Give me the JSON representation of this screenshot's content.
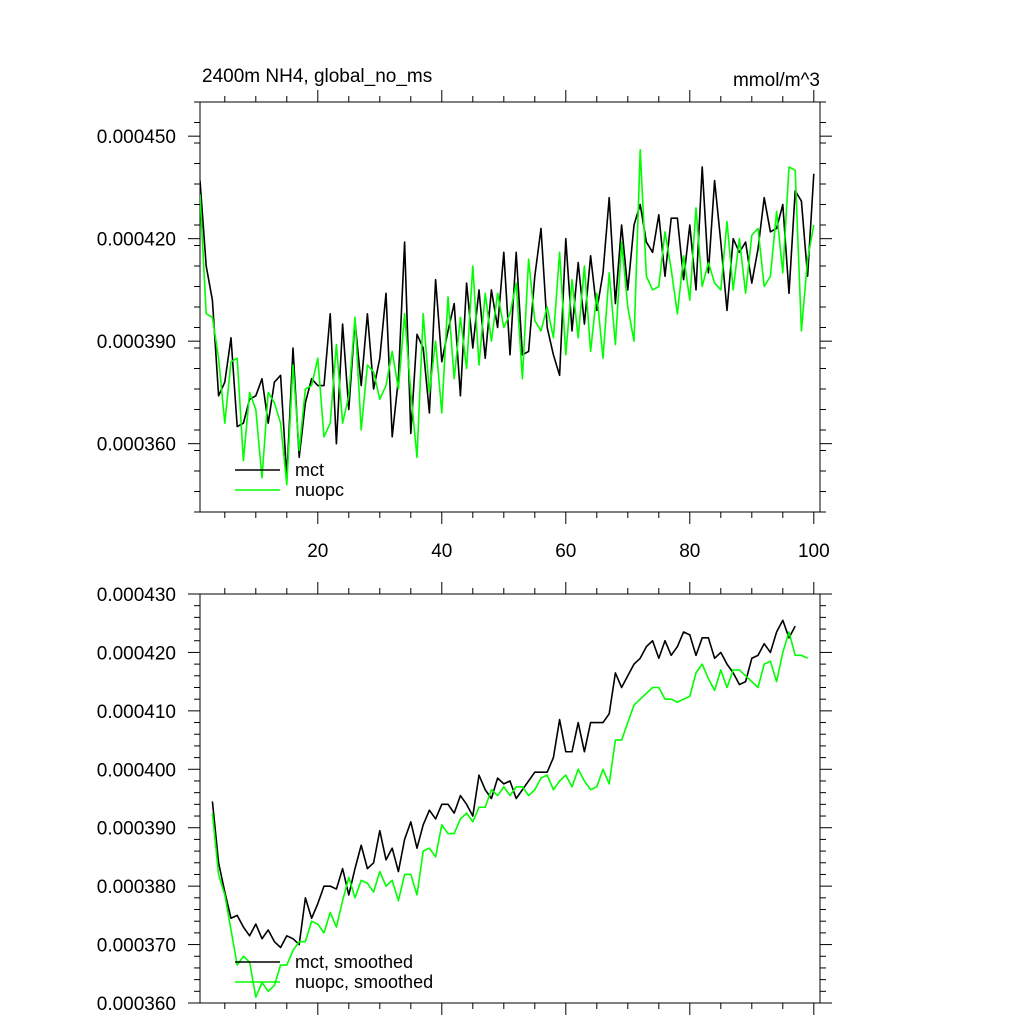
{
  "chart_data": [
    {
      "type": "line",
      "title": "2400m NH4, global_no_ms",
      "units": "mmol/m^3",
      "xlabel": "",
      "ylabel": "",
      "xlim": [
        1,
        101
      ],
      "ylim": [
        0.00034,
        0.00046
      ],
      "xticks": [
        20,
        40,
        60,
        80,
        100
      ],
      "xtick_labels": [
        "20",
        "40",
        "60",
        "80",
        "100"
      ],
      "yticks": [
        0.00036,
        0.00039,
        0.00042,
        0.00045
      ],
      "ytick_labels": [
        "0.000360",
        "0.000390",
        "0.000420",
        "0.000450"
      ],
      "legend": [
        "mct",
        "nuopc"
      ],
      "series": [
        {
          "name": "mct",
          "color": "#000000",
          "values": [
            0.000437,
            0.000412,
            0.000402,
            0.000374,
            0.000378,
            0.000391,
            0.000365,
            0.000366,
            0.000373,
            0.000374,
            0.000379,
            0.000366,
            0.000378,
            0.00038,
            0.00035,
            0.000388,
            0.000356,
            0.000372,
            0.000379,
            0.000377,
            0.000377,
            0.000398,
            0.00036,
            0.000395,
            0.00037,
            0.000396,
            0.000377,
            0.000398,
            0.000376,
            0.000385,
            0.000404,
            0.000362,
            0.000379,
            0.000419,
            0.000363,
            0.000392,
            0.000388,
            0.000369,
            0.000408,
            0.000384,
            0.000393,
            0.000401,
            0.000374,
            0.000407,
            0.000388,
            0.000405,
            0.000385,
            0.000405,
            0.000394,
            0.000416,
            0.000386,
            0.000416,
            0.000386,
            0.000387,
            0.000409,
            0.000423,
            0.000394,
            0.000386,
            0.00038,
            0.00042,
            0.000393,
            0.000413,
            0.000395,
            0.000415,
            0.000399,
            0.00041,
            0.000432,
            0.000401,
            0.000424,
            0.000405,
            0.000424,
            0.00043,
            0.000419,
            0.000416,
            0.000427,
            0.000409,
            0.000426,
            0.000426,
            0.000408,
            0.000424,
            0.000405,
            0.000441,
            0.00041,
            0.000437,
            0.000419,
            0.000399,
            0.00042,
            0.000416,
            0.000419,
            0.000407,
            0.000417,
            0.000432,
            0.000422,
            0.000423,
            0.00043,
            0.000404,
            0.000434,
            0.000431,
            0.000409,
            0.000439
          ]
        },
        {
          "name": "nuopc",
          "color": "#00ff00",
          "values": [
            0.000433,
            0.000398,
            0.000397,
            0.000385,
            0.000366,
            0.000384,
            0.000385,
            0.000355,
            0.000375,
            0.00037,
            0.00035,
            0.000375,
            0.000372,
            0.000366,
            0.000348,
            0.000383,
            0.000358,
            0.000376,
            0.000377,
            0.000385,
            0.000362,
            0.000366,
            0.000389,
            0.000366,
            0.000374,
            0.000397,
            0.000364,
            0.000383,
            0.000381,
            0.000373,
            0.000377,
            0.000387,
            0.000376,
            0.000398,
            0.000375,
            0.000356,
            0.000398,
            0.000375,
            0.00039,
            0.000369,
            0.000403,
            0.000379,
            0.000397,
            0.000382,
            0.000412,
            0.000383,
            0.000404,
            0.00039,
            0.000404,
            0.000394,
            0.000398,
            0.000407,
            0.000379,
            0.000414,
            0.000396,
            0.000393,
            0.0004,
            0.000391,
            0.000416,
            0.000386,
            0.000408,
            0.000391,
            0.000412,
            0.000387,
            0.000404,
            0.000385,
            0.00041,
            0.000389,
            0.000419,
            0.0004,
            0.00039,
            0.000446,
            0.000409,
            0.000405,
            0.000406,
            0.000422,
            0.000411,
            0.000398,
            0.000415,
            0.000402,
            0.000429,
            0.000406,
            0.000413,
            0.000407,
            0.000405,
            0.000425,
            0.000405,
            0.00042,
            0.000404,
            0.000421,
            0.000423,
            0.000406,
            0.000409,
            0.000428,
            0.00041,
            0.000441,
            0.00044,
            0.000393,
            0.000414,
            0.000424
          ]
        }
      ]
    },
    {
      "type": "line",
      "title": "",
      "xlabel": "",
      "ylabel": "",
      "xlim": [
        1,
        101
      ],
      "ylim": [
        0.00036,
        0.00043
      ],
      "xticks": [
        20,
        40,
        60,
        80,
        100
      ],
      "yticks": [
        0.00036,
        0.00037,
        0.00038,
        0.00039,
        0.0004,
        0.00041,
        0.00042,
        0.00043
      ],
      "ytick_labels": [
        "0.000360",
        "0.000370",
        "0.000380",
        "0.000390",
        "0.000400",
        "0.000410",
        "0.000420",
        "0.000430"
      ],
      "legend": [
        "mct, smoothed",
        "nuopc, smoothed"
      ],
      "series": [
        {
          "name": "mct, smoothed",
          "color": "#000000",
          "x_start": 3,
          "values": [
            0.0003945,
            0.000384,
            0.000379,
            0.0003745,
            0.000375,
            0.000373,
            0.0003715,
            0.0003735,
            0.000371,
            0.0003725,
            0.0003705,
            0.0003695,
            0.0003715,
            0.000371,
            0.00037,
            0.000378,
            0.0003745,
            0.000377,
            0.00038,
            0.00038,
            0.0003795,
            0.000383,
            0.0003785,
            0.000383,
            0.000387,
            0.000383,
            0.000384,
            0.0003895,
            0.0003845,
            0.0003865,
            0.0003825,
            0.000388,
            0.000391,
            0.0003865,
            0.0003905,
            0.000393,
            0.0003915,
            0.000394,
            0.000394,
            0.0003925,
            0.0003955,
            0.000394,
            0.000392,
            0.000399,
            0.0003965,
            0.000395,
            0.0003985,
            0.0003975,
            0.000398,
            0.000395,
            0.0003965,
            0.000398,
            0.0003995,
            0.0003995,
            0.0003995,
            0.000402,
            0.0004085,
            0.000403,
            0.000403,
            0.000408,
            0.000403,
            0.000408,
            0.000408,
            0.000408,
            0.0004095,
            0.0004165,
            0.000414,
            0.000416,
            0.000418,
            0.000419,
            0.000421,
            0.000422,
            0.000419,
            0.000422,
            0.0004195,
            0.000421,
            0.0004235,
            0.000423,
            0.0004195,
            0.0004225,
            0.0004225,
            0.000419,
            0.00042,
            0.000418,
            0.0004165,
            0.0004145,
            0.000415,
            0.000419,
            0.0004195,
            0.0004215,
            0.00042,
            0.0004235,
            0.0004255,
            0.0004225,
            0.0004245
          ]
        },
        {
          "name": "nuopc, smoothed",
          "color": "#00ff00",
          "x_start": 3,
          "values": [
            0.0003925,
            0.000382,
            0.0003785,
            0.0003725,
            0.0003665,
            0.000368,
            0.000367,
            0.000361,
            0.0003635,
            0.000362,
            0.000363,
            0.0003665,
            0.0003665,
            0.000369,
            0.0003705,
            0.0003705,
            0.000374,
            0.0003735,
            0.000372,
            0.0003755,
            0.000373,
            0.0003775,
            0.0003815,
            0.000378,
            0.000381,
            0.0003805,
            0.000379,
            0.0003825,
            0.00038,
            0.000381,
            0.0003775,
            0.000382,
            0.000382,
            0.0003785,
            0.000386,
            0.0003865,
            0.000385,
            0.0003905,
            0.000389,
            0.000389,
            0.0003915,
            0.0003925,
            0.000391,
            0.0003935,
            0.0003935,
            0.0003965,
            0.0003955,
            0.000397,
            0.0003955,
            0.000397,
            0.000397,
            0.0003955,
            0.0003965,
            0.0003985,
            0.000399,
            0.0003965,
            0.000398,
            0.000399,
            0.000397,
            0.0004,
            0.000398,
            0.0003965,
            0.000397,
            0.0004,
            0.0003975,
            0.000405,
            0.000405,
            0.000408,
            0.000411,
            0.000412,
            0.000413,
            0.000414,
            0.000414,
            0.000412,
            0.000412,
            0.0004115,
            0.000412,
            0.0004125,
            0.0004165,
            0.000418,
            0.0004155,
            0.0004135,
            0.000417,
            0.000414,
            0.000417,
            0.000417,
            0.000416,
            0.000415,
            0.000414,
            0.000418,
            0.0004185,
            0.000415,
            0.00042,
            0.0004235,
            0.0004195,
            0.0004195,
            0.000419
          ]
        }
      ]
    }
  ]
}
